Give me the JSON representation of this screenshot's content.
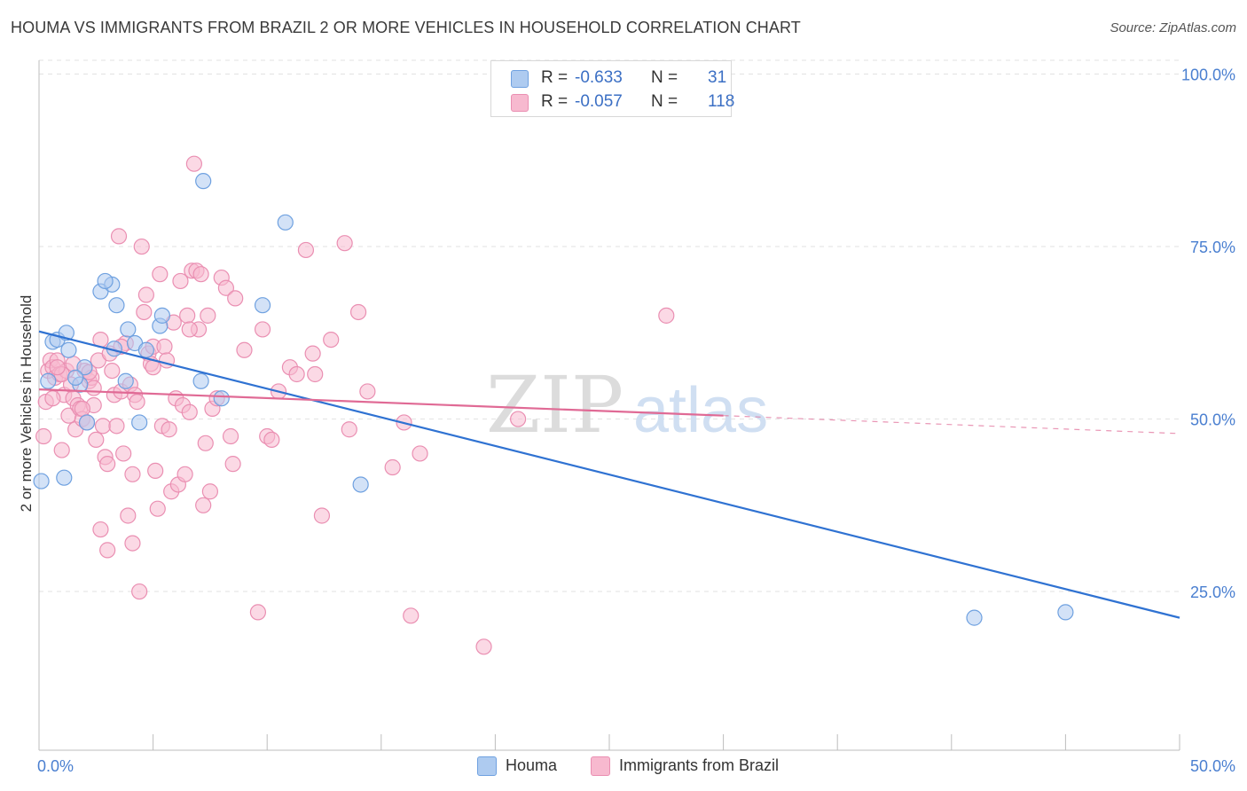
{
  "title": "HOUMA VS IMMIGRANTS FROM BRAZIL 2 OR MORE VEHICLES IN HOUSEHOLD CORRELATION CHART",
  "source": "Source: ZipAtlas.com",
  "watermark": {
    "zip": "ZIP",
    "atlas": "atlas"
  },
  "legend": {
    "r_label": "R =",
    "n_label": "N =",
    "rows": [
      {
        "r": "-0.633",
        "n": "31",
        "color": "#aecbf0"
      },
      {
        "r": "-0.057",
        "n": "118",
        "color": "#f7b9cf"
      }
    ]
  },
  "chart_data": {
    "type": "scatter",
    "title": "HOUMA VS IMMIGRANTS FROM BRAZIL 2 OR MORE VEHICLES IN HOUSEHOLD CORRELATION CHART",
    "xlabel": "",
    "ylabel": "2 or more Vehicles in Household",
    "xlim": [
      0,
      50
    ],
    "ylim": [
      2,
      102
    ],
    "x_tick_labels": [
      "0.0%",
      "50.0%"
    ],
    "y_ticks": [
      25,
      50,
      75,
      100
    ],
    "y_tick_labels": [
      "25.0%",
      "50.0%",
      "75.0%",
      "100.0%"
    ],
    "grid": true,
    "legend_position": "top-center",
    "series": [
      {
        "name": "Houma",
        "color": "#6fa1e0",
        "fill": "#aecbf0",
        "line_color": "#2f72d2",
        "trend": {
          "x": [
            0,
            50
          ],
          "y": [
            62.7,
            21.2
          ]
        },
        "points": [
          [
            0.1,
            41.0
          ],
          [
            0.4,
            55.5
          ],
          [
            0.6,
            61.2
          ],
          [
            0.8,
            61.5
          ],
          [
            1.2,
            62.5
          ],
          [
            1.3,
            60.0
          ],
          [
            1.1,
            41.5
          ],
          [
            1.8,
            55.0
          ],
          [
            2.0,
            57.5
          ],
          [
            2.1,
            49.5
          ],
          [
            2.7,
            68.5
          ],
          [
            3.2,
            69.5
          ],
          [
            2.9,
            70.0
          ],
          [
            3.3,
            60.2
          ],
          [
            3.4,
            66.5
          ],
          [
            3.8,
            55.5
          ],
          [
            3.9,
            63.0
          ],
          [
            4.2,
            61.0
          ],
          [
            4.4,
            49.5
          ],
          [
            4.7,
            60.0
          ],
          [
            5.3,
            63.5
          ],
          [
            5.4,
            65.0
          ],
          [
            7.1,
            55.5
          ],
          [
            7.2,
            84.5
          ],
          [
            8.0,
            53.0
          ],
          [
            9.8,
            66.5
          ],
          [
            10.8,
            78.5
          ],
          [
            14.1,
            40.5
          ],
          [
            41.0,
            21.2
          ],
          [
            45.0,
            22.0
          ],
          [
            1.6,
            56.0
          ]
        ]
      },
      {
        "name": "Immigrants from Brazil",
        "color": "#ea8fb2",
        "fill": "#f7b9cf",
        "line_color": "#e06a95",
        "trend": {
          "x": [
            0,
            30
          ],
          "y": [
            54.3,
            50.5
          ]
        },
        "trend_extension": {
          "x": [
            30,
            50
          ],
          "y": [
            50.5,
            47.9
          ]
        },
        "points": [
          [
            0.2,
            47.5
          ],
          [
            0.3,
            52.5
          ],
          [
            0.4,
            57.0
          ],
          [
            0.5,
            58.5
          ],
          [
            0.6,
            57.5
          ],
          [
            0.7,
            56.0
          ],
          [
            0.8,
            58.5
          ],
          [
            0.9,
            56.5
          ],
          [
            1.0,
            45.5
          ],
          [
            1.1,
            53.5
          ],
          [
            1.2,
            57.0
          ],
          [
            1.3,
            50.5
          ],
          [
            1.4,
            55.0
          ],
          [
            1.5,
            53.0
          ],
          [
            1.6,
            48.5
          ],
          [
            1.7,
            52.0
          ],
          [
            1.8,
            51.5
          ],
          [
            1.9,
            50.0
          ],
          [
            2.0,
            57.0
          ],
          [
            2.1,
            49.5
          ],
          [
            2.2,
            55.5
          ],
          [
            2.3,
            56.0
          ],
          [
            2.4,
            52.0
          ],
          [
            2.5,
            47.0
          ],
          [
            2.6,
            58.5
          ],
          [
            2.7,
            61.5
          ],
          [
            2.7,
            34.0
          ],
          [
            2.8,
            49.0
          ],
          [
            2.9,
            44.5
          ],
          [
            3.0,
            43.5
          ],
          [
            3.1,
            59.5
          ],
          [
            3.2,
            57.0
          ],
          [
            3.3,
            53.5
          ],
          [
            3.4,
            49.0
          ],
          [
            3.5,
            76.5
          ],
          [
            3.6,
            54.0
          ],
          [
            3.7,
            45.0
          ],
          [
            3.8,
            61.0
          ],
          [
            3.9,
            36.0
          ],
          [
            4.0,
            55.0
          ],
          [
            4.1,
            42.0
          ],
          [
            4.2,
            53.5
          ],
          [
            4.3,
            52.5
          ],
          [
            4.4,
            25.0
          ],
          [
            4.5,
            75.0
          ],
          [
            4.6,
            65.5
          ],
          [
            4.7,
            68.0
          ],
          [
            4.8,
            59.5
          ],
          [
            4.9,
            58.0
          ],
          [
            5.0,
            60.5
          ],
          [
            5.1,
            42.5
          ],
          [
            5.2,
            37.0
          ],
          [
            5.3,
            71.0
          ],
          [
            5.4,
            49.0
          ],
          [
            5.5,
            60.5
          ],
          [
            5.6,
            58.5
          ],
          [
            5.7,
            48.5
          ],
          [
            5.8,
            39.5
          ],
          [
            5.9,
            64.0
          ],
          [
            6.0,
            53.0
          ],
          [
            6.1,
            40.5
          ],
          [
            6.2,
            70.0
          ],
          [
            6.3,
            52.0
          ],
          [
            6.4,
            42.0
          ],
          [
            6.5,
            65.0
          ],
          [
            6.6,
            51.0
          ],
          [
            6.7,
            71.5
          ],
          [
            6.8,
            87.0
          ],
          [
            6.9,
            71.5
          ],
          [
            7.0,
            63.0
          ],
          [
            7.1,
            71.0
          ],
          [
            7.2,
            37.5
          ],
          [
            7.3,
            46.5
          ],
          [
            7.4,
            65.0
          ],
          [
            7.5,
            39.5
          ],
          [
            7.6,
            51.5
          ],
          [
            7.8,
            53.0
          ],
          [
            8.0,
            70.5
          ],
          [
            8.2,
            69.0
          ],
          [
            8.4,
            47.5
          ],
          [
            8.5,
            43.5
          ],
          [
            8.6,
            67.5
          ],
          [
            9.0,
            60.0
          ],
          [
            9.6,
            22.0
          ],
          [
            9.8,
            63.0
          ],
          [
            10.0,
            47.5
          ],
          [
            10.2,
            47.0
          ],
          [
            10.5,
            54.0
          ],
          [
            11.0,
            57.5
          ],
          [
            11.3,
            56.5
          ],
          [
            11.7,
            74.5
          ],
          [
            12.0,
            59.5
          ],
          [
            12.1,
            56.5
          ],
          [
            12.4,
            36.0
          ],
          [
            12.8,
            61.5
          ],
          [
            13.4,
            75.5
          ],
          [
            13.6,
            48.5
          ],
          [
            14.0,
            65.5
          ],
          [
            14.4,
            54.0
          ],
          [
            15.5,
            43.0
          ],
          [
            16.0,
            49.5
          ],
          [
            16.3,
            21.5
          ],
          [
            16.7,
            45.0
          ],
          [
            19.5,
            17.0
          ],
          [
            21.0,
            50.0
          ],
          [
            27.5,
            65.0
          ],
          [
            3.0,
            31.0
          ],
          [
            4.1,
            32.0
          ],
          [
            1.0,
            56.5
          ],
          [
            0.8,
            57.5
          ],
          [
            2.2,
            56.8
          ],
          [
            1.5,
            58.0
          ],
          [
            3.6,
            60.5
          ],
          [
            2.4,
            54.5
          ],
          [
            0.6,
            53.0
          ],
          [
            5.0,
            57.5
          ],
          [
            6.6,
            63.0
          ],
          [
            1.9,
            51.5
          ]
        ]
      }
    ]
  }
}
